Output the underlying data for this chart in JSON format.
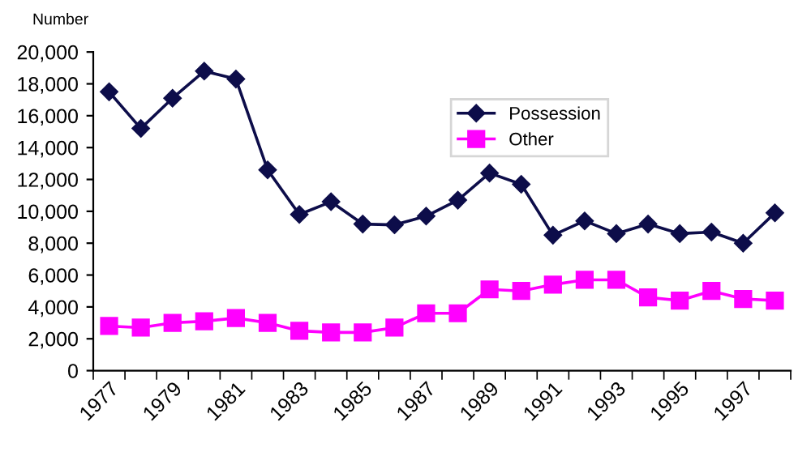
{
  "chart_data": {
    "type": "line",
    "ylabel": "Number",
    "categories": [
      "1977",
      null,
      "1979",
      null,
      "1981",
      null,
      "1983",
      null,
      "1985",
      null,
      "1987",
      null,
      "1989",
      null,
      "1991",
      null,
      "1993",
      null,
      "1995",
      null,
      "1997",
      null
    ],
    "series": [
      {
        "name": "Possession",
        "color": "#0d0d4a",
        "marker": "diamond",
        "values": [
          17500,
          15200,
          17100,
          18800,
          18300,
          12600,
          9800,
          10600,
          9200,
          9150,
          9700,
          10700,
          12400,
          11700,
          8500,
          9400,
          8600,
          9200,
          8600,
          8700,
          8000,
          9900
        ]
      },
      {
        "name": "Other",
        "color": "#ff00ff",
        "marker": "square",
        "values": [
          2800,
          2700,
          3000,
          3100,
          3300,
          3000,
          2500,
          2400,
          2400,
          2700,
          3600,
          3600,
          5100,
          5000,
          5400,
          5700,
          5700,
          4600,
          4400,
          5000,
          4500,
          4400
        ]
      }
    ],
    "ylim": [
      0,
      20000
    ],
    "yticks": [
      {
        "value": 0,
        "label": "0"
      },
      {
        "value": 2000,
        "label": "2,000"
      },
      {
        "value": 4000,
        "label": "4,000"
      },
      {
        "value": 6000,
        "label": "6,000"
      },
      {
        "value": 8000,
        "label": "8,000"
      },
      {
        "value": 10000,
        "label": "10,000"
      },
      {
        "value": 12000,
        "label": "12,000"
      },
      {
        "value": 14000,
        "label": "14,000"
      },
      {
        "value": 16000,
        "label": "16,000"
      },
      {
        "value": 18000,
        "label": "18,000"
      },
      {
        "value": 20000,
        "label": "20,000"
      }
    ],
    "grid": false,
    "legend": "top right"
  }
}
